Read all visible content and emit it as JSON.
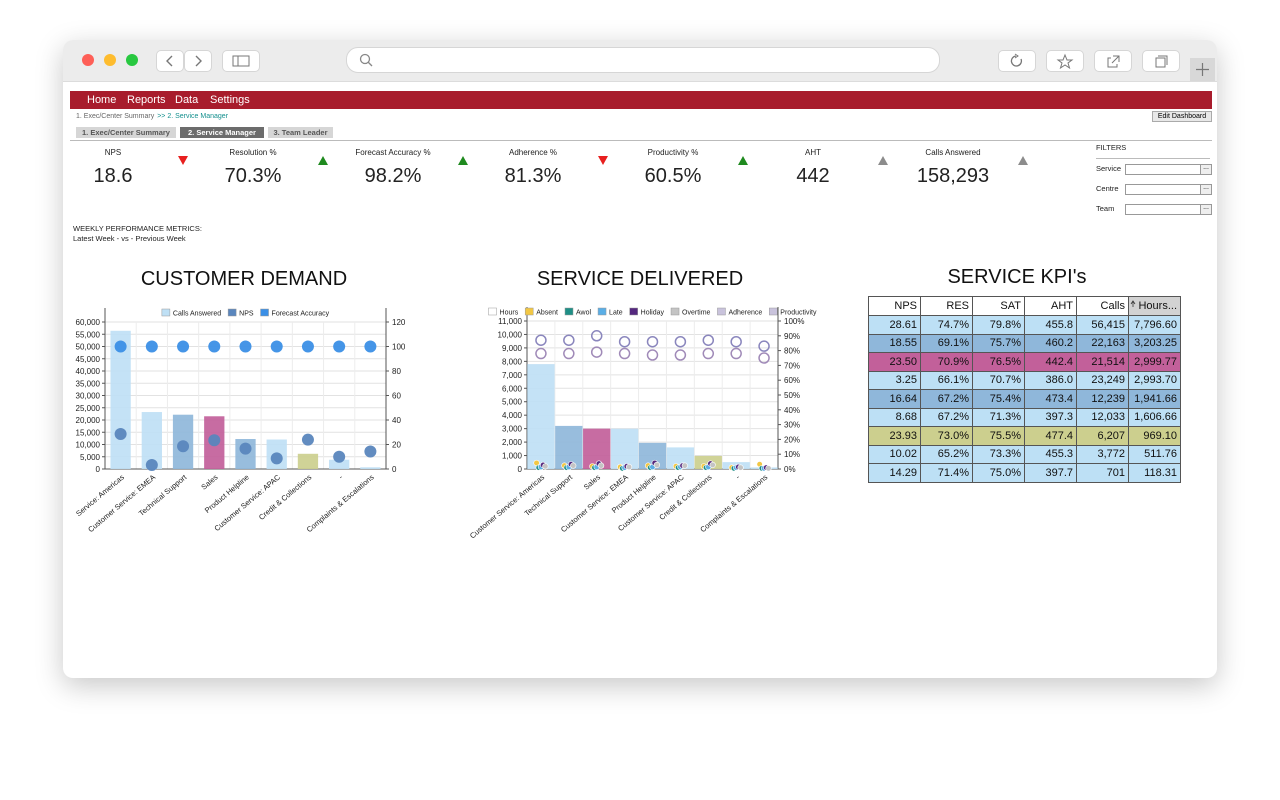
{
  "nav": [
    "Home",
    "Reports",
    "Data",
    "Settings"
  ],
  "breadcrumb": [
    "1. Exec/Center Summary",
    ">> 2. Service Manager"
  ],
  "tabs": [
    "1. Exec/Center Summary",
    "2. Service Manager",
    "3. Team Leader"
  ],
  "active_tab": 1,
  "edit_button": "Edit Dashboard",
  "kpis": [
    {
      "label": "NPS",
      "value": "18.6",
      "trend": "down",
      "trend_color": "#e8201f"
    },
    {
      "label": "Resolution %",
      "value": "70.3%",
      "trend": "up",
      "trend_color": "#1f8a1f"
    },
    {
      "label": "Forecast Accuracy %",
      "value": "98.2%",
      "trend": "up",
      "trend_color": "#1f8a1f"
    },
    {
      "label": "Adherence %",
      "value": "81.3%",
      "trend": "down",
      "trend_color": "#e8201f"
    },
    {
      "label": "Productivity %",
      "value": "60.5%",
      "trend": "up",
      "trend_color": "#1f8a1f"
    },
    {
      "label": "AHT",
      "value": "442",
      "trend": "up",
      "trend_color": "#8c8c8c"
    },
    {
      "label": "Calls Answered",
      "value": "158,293",
      "trend": "up",
      "trend_color": "#8c8c8c"
    }
  ],
  "filters": {
    "title": "FILTERS",
    "fields": [
      "Service",
      "Centre",
      "Team"
    ],
    "button": "..."
  },
  "weekly": {
    "title": "WEEKLY PERFORMANCE METRICS:",
    "subtitle": "Latest Week - vs - Previous Week"
  },
  "chart_data": [
    {
      "type": "combo",
      "title": "CUSTOMER DEMAND",
      "categories": [
        "Service: Americas",
        "Customer Service: EMEA",
        "Technical Support",
        "Sales",
        "Product Helpline",
        "Customer Service: APAC",
        "Credit & Collections",
        "-",
        "Complaints & Escalations"
      ],
      "series": [
        {
          "name": "Calls Answered",
          "type": "bar",
          "color": "#bfe0f5",
          "colors": [
            "#bfe0f5",
            "#bfe0f5",
            "#8fb7da",
            "#c2609a",
            "#8fb7da",
            "#bfe0f5",
            "#cccf8e",
            "#bfe0f5",
            "#bfe0f5"
          ],
          "values": [
            56415,
            23249,
            22163,
            21514,
            12239,
            12033,
            6207,
            3772,
            701
          ]
        },
        {
          "name": "NPS",
          "type": "scatter",
          "axis": "y2",
          "marker": "filled",
          "color": "#5a86bd",
          "values": [
            28.61,
            3.25,
            18.55,
            23.5,
            16.64,
            8.68,
            23.93,
            10.02,
            14.29
          ]
        },
        {
          "name": "Forecast Accuracy",
          "type": "scatter",
          "axis": "y2",
          "marker": "filled",
          "color": "#3b8fe6",
          "values": [
            100,
            100,
            100,
            100,
            100,
            100,
            100,
            100,
            100
          ]
        }
      ],
      "ylim": [
        0,
        60000
      ],
      "yticks": [
        0,
        {
          "value": 5000,
          "label": "5,000"
        },
        {
          "value": 10000,
          "label": "10,000"
        },
        {
          "value": 15000,
          "label": "15,000"
        },
        {
          "value": 20000,
          "label": "20,000"
        },
        {
          "value": 25000,
          "label": "25,000"
        },
        {
          "value": 30000,
          "label": "30,000"
        },
        {
          "value": 35000,
          "label": "35,000"
        },
        {
          "value": 40000,
          "label": "40,000"
        },
        {
          "value": 45000,
          "label": "45,000"
        },
        {
          "value": 50000,
          "label": "50,000"
        },
        {
          "value": 55000,
          "label": "55,000"
        },
        {
          "value": 60000,
          "label": "60,000"
        }
      ],
      "y2lim": [
        0,
        120
      ],
      "y2ticks": [
        0,
        20,
        40,
        60,
        80,
        100,
        120
      ],
      "grid": true
    },
    {
      "type": "combo",
      "title": "SERVICE DELIVERED",
      "categories": [
        "Customer Service: Americas",
        "Technical Support",
        "Sales",
        "Customer Service: EMEA",
        "Product Helpline",
        "Customer Service: APAC",
        "Credit & Collections",
        "-",
        "Complaints & Escalations"
      ],
      "series": [
        {
          "name": "Hours",
          "type": "bar",
          "color": "#ffffff",
          "colors": [
            "#bfe0f5",
            "#8fb7da",
            "#c2609a",
            "#bfe0f5",
            "#8fb7da",
            "#bfe0f5",
            "#cccf8e",
            "#bfe0f5",
            "#bfe0f5"
          ],
          "values": [
            7796.6,
            3203.25,
            2999.77,
            2993.7,
            1941.66,
            1606.66,
            969.1,
            511.76,
            118.31
          ]
        },
        {
          "name": "Absent",
          "type": "scatter",
          "marker": "small",
          "color": "#f2c744",
          "values": [
            450,
            250,
            200,
            150,
            250,
            200,
            200,
            100,
            350
          ]
        },
        {
          "name": "Awol",
          "type": "scatter",
          "marker": "small",
          "color": "#1f8f86",
          "values": [
            100,
            100,
            100,
            50,
            100,
            100,
            100,
            50,
            50
          ]
        },
        {
          "name": "Late",
          "type": "scatter",
          "marker": "small",
          "color": "#5aaee6",
          "values": [
            150,
            150,
            150,
            100,
            150,
            150,
            150,
            100,
            50
          ]
        },
        {
          "name": "Holiday",
          "type": "scatter",
          "marker": "small",
          "color": "#54287e",
          "values": [
            300,
            350,
            400,
            200,
            450,
            250,
            400,
            150,
            100
          ]
        },
        {
          "name": "Overtime",
          "type": "scatter",
          "marker": "small",
          "color": "#c4c4c4",
          "values": [
            200,
            250,
            250,
            150,
            300,
            250,
            300,
            100,
            50
          ]
        },
        {
          "name": "Adherence",
          "type": "scatter",
          "axis": "y2",
          "marker": "open",
          "color": "#8a86bd",
          "values": [
            87,
            87,
            90,
            86,
            86,
            86,
            87,
            86,
            83
          ]
        },
        {
          "name": "Productivity",
          "type": "scatter",
          "axis": "y2",
          "marker": "open",
          "color": "#a08ab8",
          "values": [
            78,
            78,
            79,
            78,
            77,
            77,
            78,
            78,
            75
          ]
        }
      ],
      "ylim": [
        0,
        11000
      ],
      "yticks": [
        0,
        {
          "value": 1000,
          "label": "1,000"
        },
        {
          "value": 2000,
          "label": "2,000"
        },
        {
          "value": 3000,
          "label": "3,000"
        },
        {
          "value": 4000,
          "label": "4,000"
        },
        {
          "value": 5000,
          "label": "5,000"
        },
        {
          "value": 6000,
          "label": "6,000"
        },
        {
          "value": 7000,
          "label": "7,000"
        },
        {
          "value": 8000,
          "label": "8,000"
        },
        {
          "value": 9000,
          "label": "9,000"
        },
        {
          "value": 10000,
          "label": "10,000"
        },
        {
          "value": 11000,
          "label": "11,000"
        }
      ],
      "y2lim": [
        0,
        100
      ],
      "y2ticks": [
        {
          "value": 0,
          "label": "0%"
        },
        {
          "value": 10,
          "label": "10%"
        },
        {
          "value": 20,
          "label": "20%"
        },
        {
          "value": 30,
          "label": "30%"
        },
        {
          "value": 40,
          "label": "40%"
        },
        {
          "value": 50,
          "label": "50%"
        },
        {
          "value": 60,
          "label": "60%"
        },
        {
          "value": 70,
          "label": "70%"
        },
        {
          "value": 80,
          "label": "80%"
        },
        {
          "value": 90,
          "label": "90%"
        },
        {
          "value": 100,
          "label": "100%"
        }
      ],
      "grid": true
    }
  ],
  "kpi_table": {
    "title": "SERVICE KPI's",
    "columns": [
      "NPS",
      "RES",
      "SAT",
      "AHT",
      "Calls",
      "Hours..."
    ],
    "rows": [
      [
        "28.61",
        "74.7%",
        "79.8%",
        "455.8",
        "56,415",
        "7,796.60"
      ],
      [
        "18.55",
        "69.1%",
        "75.7%",
        "460.2",
        "22,163",
        "3,203.25"
      ],
      [
        "23.50",
        "70.9%",
        "76.5%",
        "442.4",
        "21,514",
        "2,999.77"
      ],
      [
        "3.25",
        "66.1%",
        "70.7%",
        "386.0",
        "23,249",
        "2,993.70"
      ],
      [
        "16.64",
        "67.2%",
        "75.4%",
        "473.4",
        "12,239",
        "1,941.66"
      ],
      [
        "8.68",
        "67.2%",
        "71.3%",
        "397.3",
        "12,033",
        "1,606.66"
      ],
      [
        "23.93",
        "73.0%",
        "75.5%",
        "477.4",
        "6,207",
        "969.10"
      ],
      [
        "10.02",
        "65.2%",
        "73.3%",
        "455.3",
        "3,772",
        "511.76"
      ],
      [
        "14.29",
        "71.4%",
        "75.0%",
        "397.7",
        "701",
        "118.31"
      ]
    ],
    "row_colors": [
      "#bde0f5",
      "#8fb7da",
      "#c2609a",
      "#bde0f5",
      "#8fb7da",
      "#bde0f5",
      "#cccf8e",
      "#bde0f5",
      "#bde0f5"
    ]
  }
}
